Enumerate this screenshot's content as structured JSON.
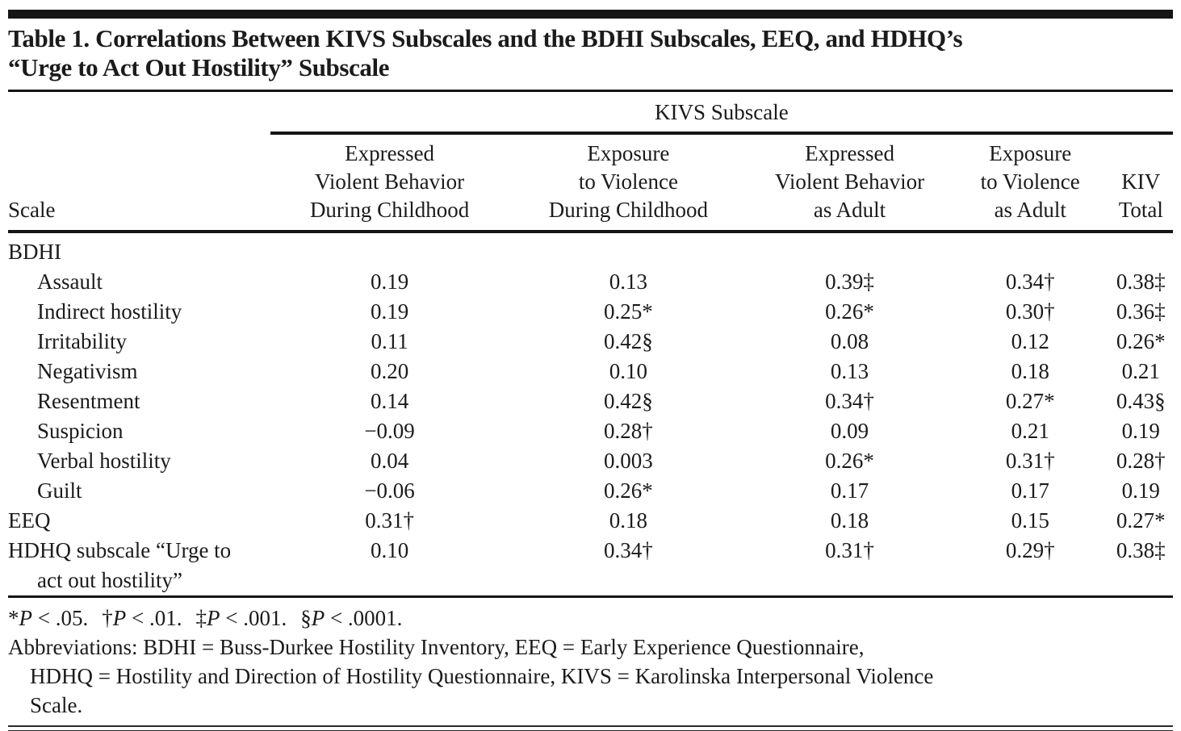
{
  "title": {
    "line1": "Table 1. Correlations Between KIVS Subscales and the BDHI Subscales, EEQ, and HDHQ’s",
    "line2": "“Urge to Act Out Hostility” Subscale"
  },
  "table": {
    "spanner": "KIVS Subscale",
    "row_header": "Scale",
    "columns": [
      [
        "Expressed",
        "Violent Behavior",
        "During Childhood"
      ],
      [
        "Exposure",
        "to Violence",
        "During Childhood"
      ],
      [
        "Expressed",
        "Violent Behavior",
        "as Adult"
      ],
      [
        "Exposure",
        "to Violence",
        "as Adult"
      ],
      [
        "KIV",
        "Total"
      ]
    ],
    "rows": [
      {
        "label": "BDHI",
        "indent": 0,
        "values": [
          "",
          "",
          "",
          "",
          ""
        ]
      },
      {
        "label": "Assault",
        "indent": 1,
        "values": [
          "0.19",
          "0.13",
          "0.39‡",
          "0.34†",
          "0.38‡"
        ]
      },
      {
        "label": "Indirect hostility",
        "indent": 1,
        "values": [
          "0.19",
          "0.25*",
          "0.26*",
          "0.30†",
          "0.36‡"
        ]
      },
      {
        "label": "Irritability",
        "indent": 1,
        "values": [
          "0.11",
          "0.42§",
          "0.08",
          "0.12",
          "0.26*"
        ]
      },
      {
        "label": "Negativism",
        "indent": 1,
        "values": [
          "0.20",
          "0.10",
          "0.13",
          "0.18",
          "0.21"
        ]
      },
      {
        "label": "Resentment",
        "indent": 1,
        "values": [
          "0.14",
          "0.42§",
          "0.34†",
          "0.27*",
          "0.43§"
        ]
      },
      {
        "label": "Suspicion",
        "indent": 1,
        "values": [
          "−0.09",
          "0.28†",
          "0.09",
          "0.21",
          "0.19"
        ]
      },
      {
        "label": "Verbal hostility",
        "indent": 1,
        "values": [
          "0.04",
          "0.003",
          "0.26*",
          "0.31†",
          "0.28†"
        ]
      },
      {
        "label": "Guilt",
        "indent": 1,
        "values": [
          "−0.06",
          "0.26*",
          "0.17",
          "0.17",
          "0.19"
        ]
      },
      {
        "label": "EEQ",
        "indent": 0,
        "values": [
          "0.31†",
          "0.18",
          "0.18",
          "0.15",
          "0.27*"
        ]
      },
      {
        "label": "HDHQ subscale “Urge to",
        "label2": "act out hostility”",
        "indent": 0,
        "values": [
          "0.10",
          "0.34†",
          "0.31†",
          "0.29†",
          "0.38‡"
        ]
      }
    ]
  },
  "footnotes": {
    "significance": [
      {
        "symbol": "*",
        "p": "P",
        "rest": " < .05."
      },
      {
        "symbol": "†",
        "p": "P",
        "rest": " < .01."
      },
      {
        "symbol": "‡",
        "p": "P",
        "rest": " < .001."
      },
      {
        "symbol": "§",
        "p": "P",
        "rest": " < .0001."
      }
    ],
    "abbreviations": [
      "Abbreviations: BDHI = Buss-Durkee Hostility Inventory, EEQ = Early Experience Questionnaire,",
      "HDHQ = Hostility and Direction of Hostility Questionnaire, KIVS = Karolinska Interpersonal Violence",
      "Scale."
    ]
  }
}
